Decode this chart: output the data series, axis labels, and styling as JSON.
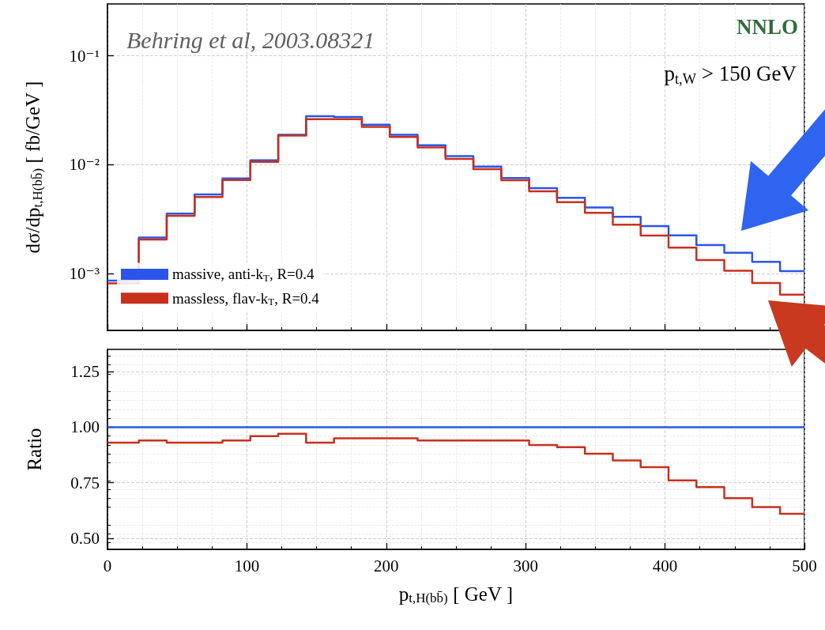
{
  "chart_data": [
    {
      "type": "histogram",
      "ylabel": "dσ/dp$_{t,H(bb̄)}$ [ fb/GeV ]",
      "annotations": [
        "Behring et al, 2003.08321",
        "NNLO",
        "p$_{t,W}$ > 150 GeV"
      ],
      "bins": [
        0,
        22.5,
        42.5,
        62.5,
        82.5,
        102.5,
        122.5,
        142.5,
        162.5,
        182.5,
        202.5,
        222.5,
        242.5,
        262.5,
        282.5,
        302.5,
        322.5,
        342.5,
        362.5,
        382.5,
        402.5,
        422.5,
        442.5,
        462.5,
        482.5,
        500
      ],
      "series": [
        {
          "name": "massive, anti-k$_{T}$, R=0.4",
          "color": "#2a55e8",
          "values": [
            0.00086,
            0.00214,
            0.00355,
            0.00533,
            0.00748,
            0.011,
            0.0188,
            0.0279,
            0.0274,
            0.0233,
            0.0188,
            0.0151,
            0.012,
            0.0096,
            0.00755,
            0.0061,
            0.00497,
            0.00404,
            0.00332,
            0.00273,
            0.00224,
            0.00183,
            0.00155,
            0.00128,
            0.00105
          ]
        },
        {
          "name": "massless, flav-k$_{T}$, R=0.4",
          "color": "#c8301e",
          "values": [
            0.00081,
            0.00205,
            0.00339,
            0.00505,
            0.00722,
            0.0106,
            0.0185,
            0.0262,
            0.0262,
            0.0223,
            0.018,
            0.0144,
            0.0113,
            0.0091,
            0.0072,
            0.0057,
            0.00452,
            0.00361,
            0.00281,
            0.00223,
            0.00173,
            0.00133,
            0.00106,
            0.00082,
            0.00064
          ]
        }
      ],
      "xlim": [
        0,
        500
      ],
      "xticks": [
        0,
        100,
        200,
        300,
        400,
        500
      ],
      "ylim": [
        0.0003,
        0.3
      ],
      "yticks": [
        {
          "value": 0.001,
          "label": "10⁻³"
        },
        {
          "value": 0.01,
          "label": "10⁻²"
        },
        {
          "value": 0.1,
          "label": "10⁻¹"
        }
      ],
      "log": "y",
      "grid": true,
      "legend": "bottom left",
      "tick_labels": "y"
    },
    {
      "type": "histogram",
      "ylabel": "Ratio",
      "xlabel": "p$_{t,H(bb̄)}$ [ GeV ]",
      "bins": [
        0,
        22.5,
        42.5,
        62.5,
        82.5,
        102.5,
        122.5,
        142.5,
        162.5,
        182.5,
        202.5,
        222.5,
        242.5,
        262.5,
        282.5,
        302.5,
        322.5,
        342.5,
        362.5,
        382.5,
        402.5,
        422.5,
        442.5,
        462.5,
        482.5,
        500
      ],
      "series": [
        {
          "color": "#2a55e8",
          "values": [
            1,
            1,
            1,
            1,
            1,
            1,
            1,
            1,
            1,
            1,
            1,
            1,
            1,
            1,
            1,
            1,
            1,
            1,
            1,
            1,
            1,
            1,
            1,
            1,
            1
          ]
        },
        {
          "color": "#c8301e",
          "values": [
            0.93,
            0.94,
            0.93,
            0.93,
            0.94,
            0.96,
            0.97,
            0.93,
            0.95,
            0.95,
            0.95,
            0.94,
            0.94,
            0.94,
            0.94,
            0.92,
            0.91,
            0.88,
            0.85,
            0.82,
            0.76,
            0.73,
            0.68,
            0.64,
            0.61
          ]
        }
      ],
      "xlim": [
        0,
        500
      ],
      "xticks": [
        0,
        100,
        200,
        300,
        400,
        500
      ],
      "ylim": [
        0.45,
        1.35
      ],
      "yticks": [
        {
          "value": 0.5,
          "label": "0.50"
        },
        0.75,
        {
          "value": 1,
          "label": "1.00"
        },
        1.25
      ],
      "grid": true
    }
  ]
}
